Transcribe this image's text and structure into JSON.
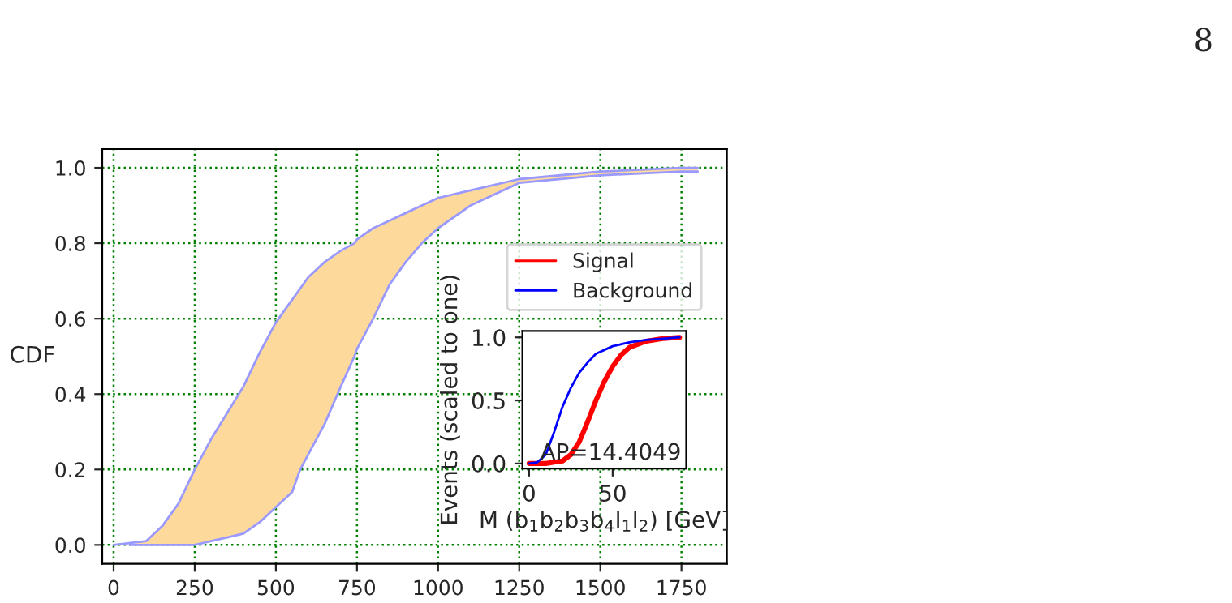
{
  "chart_data": [
    {
      "type": "line",
      "ylabel": "CDF",
      "xlim": [
        -35,
        1890
      ],
      "ylim": [
        -0.05,
        1.05
      ],
      "xticks": [
        0,
        250,
        500,
        750,
        1000,
        1250,
        1500,
        1750
      ],
      "yticks": [
        {
          "value": 0,
          "label": "0.0"
        },
        {
          "value": 0.2,
          "label": "0.2"
        },
        {
          "value": 0.4,
          "label": "0.4"
        },
        {
          "value": 0.6,
          "label": "0.6"
        },
        {
          "value": 0.8,
          "label": "0.8"
        },
        {
          "value": 1,
          "label": "1.0"
        }
      ],
      "grid": true,
      "annotations": [
        "8"
      ],
      "series": [
        {
          "type": "line",
          "color": "#9999ff",
          "x": [
            50,
            100,
            150,
            200,
            250,
            300,
            350,
            400,
            450,
            500,
            550,
            575,
            600,
            650,
            700,
            742,
            750,
            800,
            850,
            900,
            950,
            1000,
            1100,
            1250,
            1500,
            1750,
            1800
          ],
          "values": [
            0,
            0,
            0,
            0,
            0,
            0.01,
            0.02,
            0.03,
            0.06,
            0.1,
            0.14,
            0.2,
            0.24,
            0.32,
            0.42,
            0.5,
            0.52,
            0.6,
            0.69,
            0.75,
            0.8,
            0.84,
            0.9,
            0.96,
            0.98,
            0.99,
            0.99
          ],
          "lower": [
            0,
            0,
            0,
            0,
            0,
            0.01,
            0.02,
            0.03,
            0.06,
            0.1,
            0.14,
            0.2,
            0.24,
            0.32,
            0.42,
            0.5,
            0.52,
            0.6,
            0.69,
            0.75,
            0.8,
            0.84,
            0.9,
            0.96,
            0.98,
            0.99,
            0.99
          ],
          "upper": [
            0,
            0.01,
            0.05,
            0.11,
            0.2,
            0.28,
            0.35,
            0.42,
            0.51,
            0.59,
            0.65,
            0.68,
            0.71,
            0.75,
            0.78,
            0.8,
            0.81,
            0.84,
            0.86,
            0.88,
            0.9,
            0.92,
            0.94,
            0.97,
            0.99,
            1.0,
            1.0
          ]
        },
        {
          "type": "line",
          "color": "#9999ff",
          "x": [
            0,
            100,
            150,
            200,
            250,
            300,
            350,
            400,
            450,
            500,
            550,
            575,
            600,
            650,
            700,
            742,
            750,
            800,
            850,
            900,
            950,
            1000,
            1100,
            1250,
            1500,
            1750,
            1800
          ],
          "values": [
            0,
            0.01,
            0.05,
            0.11,
            0.2,
            0.28,
            0.35,
            0.42,
            0.51,
            0.59,
            0.65,
            0.68,
            0.71,
            0.75,
            0.78,
            0.8,
            0.81,
            0.84,
            0.86,
            0.88,
            0.9,
            0.92,
            0.94,
            0.97,
            0.99,
            1.0,
            1.0
          ]
        }
      ]
    },
    {
      "type": "line",
      "xlabel": "M (b$_{1}$b$_{2}$b$_{3}$b$_{4}$l$_{1}$l$_{2}$) [GeV]",
      "ylabel": "Events (scaled to one)",
      "xlim": [
        -4,
        94
      ],
      "ylim": [
        -0.04,
        1.05
      ],
      "xticks": [
        0,
        50
      ],
      "yticks": [
        {
          "value": 0,
          "label": "0.0"
        },
        {
          "value": 0.5,
          "label": "0.5"
        },
        {
          "value": 1,
          "label": "1.0"
        }
      ],
      "legend": "top",
      "annotations": [
        "AP=14.4049"
      ],
      "series": [
        {
          "name": "Signal",
          "color": "#ff0000",
          "x": [
            0,
            10,
            15,
            20,
            25,
            30,
            35,
            40,
            45,
            50,
            55,
            60,
            70,
            80,
            90
          ],
          "values": [
            0,
            0,
            0.01,
            0.02,
            0.07,
            0.17,
            0.33,
            0.5,
            0.65,
            0.77,
            0.86,
            0.92,
            0.97,
            0.99,
            1.0
          ]
        },
        {
          "name": "Background",
          "color": "#0000ff",
          "x": [
            0,
            5,
            10,
            15,
            20,
            25,
            30,
            35,
            40,
            50,
            60,
            70,
            80,
            90
          ],
          "values": [
            0,
            0.01,
            0.07,
            0.25,
            0.45,
            0.6,
            0.72,
            0.8,
            0.87,
            0.93,
            0.96,
            0.98,
            0.99,
            1.0
          ]
        }
      ]
    }
  ]
}
